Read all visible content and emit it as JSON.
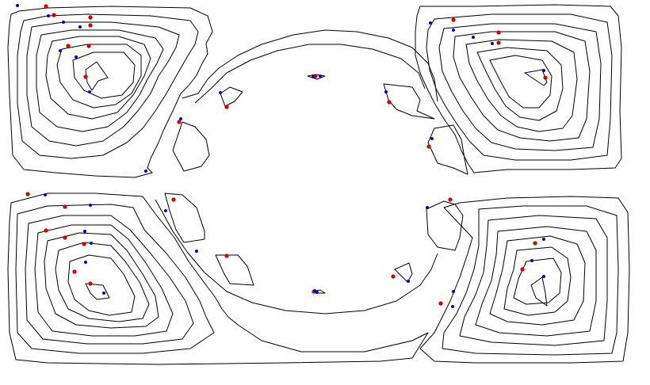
{
  "colors": {
    "background": "#ffffff",
    "contour": "#000000",
    "marker_red": "#d40000",
    "marker_blue": "#0000cc"
  },
  "legend": null
}
